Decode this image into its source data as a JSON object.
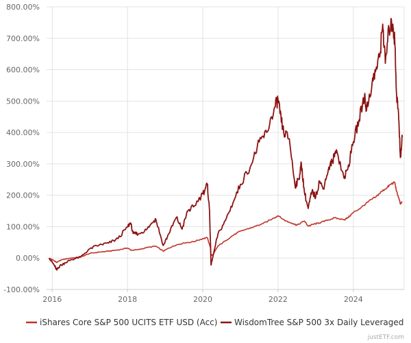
{
  "chart_data": {
    "type": "line",
    "title": "",
    "xlabel": "",
    "ylabel": "",
    "xlim": [
      2015.85,
      2025.35
    ],
    "ylim": [
      -100,
      800
    ],
    "x_ticks": [
      "2016",
      "2018",
      "2020",
      "2022",
      "2024"
    ],
    "y_ticks": [
      "-100.00%",
      "0.00%",
      "100.00%",
      "200.00%",
      "300.00%",
      "400.00%",
      "500.00%",
      "600.00%",
      "700.00%",
      "800.00%"
    ],
    "grid": true,
    "legend_position": "bottom",
    "series": [
      {
        "name": "iShares Core S&P 500 UCITS ETF USD (Acc)",
        "color": "#c0322a",
        "points": [
          [
            2015.92,
            0
          ],
          [
            2016.05,
            -8
          ],
          [
            2016.12,
            -14
          ],
          [
            2016.25,
            -5
          ],
          [
            2016.5,
            0
          ],
          [
            2016.75,
            3
          ],
          [
            2017.0,
            15
          ],
          [
            2017.25,
            19
          ],
          [
            2017.5,
            22
          ],
          [
            2017.75,
            26
          ],
          [
            2018.0,
            32
          ],
          [
            2018.1,
            25
          ],
          [
            2018.3,
            27
          ],
          [
            2018.5,
            33
          ],
          [
            2018.75,
            38
          ],
          [
            2018.95,
            22
          ],
          [
            2019.1,
            32
          ],
          [
            2019.3,
            42
          ],
          [
            2019.5,
            48
          ],
          [
            2019.75,
            52
          ],
          [
            2020.0,
            62
          ],
          [
            2020.12,
            65
          ],
          [
            2020.2,
            35
          ],
          [
            2020.22,
            8
          ],
          [
            2020.28,
            12
          ],
          [
            2020.4,
            38
          ],
          [
            2020.6,
            55
          ],
          [
            2020.8,
            72
          ],
          [
            2021.0,
            86
          ],
          [
            2021.3,
            97
          ],
          [
            2021.6,
            110
          ],
          [
            2021.9,
            128
          ],
          [
            2022.0,
            135
          ],
          [
            2022.2,
            118
          ],
          [
            2022.4,
            110
          ],
          [
            2022.5,
            105
          ],
          [
            2022.7,
            118
          ],
          [
            2022.8,
            102
          ],
          [
            2022.95,
            108
          ],
          [
            2023.1,
            112
          ],
          [
            2023.3,
            120
          ],
          [
            2023.5,
            128
          ],
          [
            2023.75,
            122
          ],
          [
            2023.85,
            128
          ],
          [
            2024.0,
            145
          ],
          [
            2024.2,
            160
          ],
          [
            2024.4,
            180
          ],
          [
            2024.6,
            195
          ],
          [
            2024.75,
            212
          ],
          [
            2024.9,
            225
          ],
          [
            2025.0,
            236
          ],
          [
            2025.1,
            241
          ],
          [
            2025.15,
            212
          ],
          [
            2025.2,
            194
          ],
          [
            2025.25,
            172
          ],
          [
            2025.3,
            178
          ]
        ]
      },
      {
        "name": "WisdomTree S&P 500 3x Daily Leveraged",
        "color": "#8b1212",
        "points": [
          [
            2015.92,
            0
          ],
          [
            2016.05,
            -22
          ],
          [
            2016.12,
            -38
          ],
          [
            2016.2,
            -25
          ],
          [
            2016.35,
            -15
          ],
          [
            2016.5,
            -5
          ],
          [
            2016.75,
            3
          ],
          [
            2017.0,
            30
          ],
          [
            2017.25,
            42
          ],
          [
            2017.5,
            48
          ],
          [
            2017.75,
            62
          ],
          [
            2018.0,
            100
          ],
          [
            2018.08,
            112
          ],
          [
            2018.15,
            78
          ],
          [
            2018.3,
            78
          ],
          [
            2018.5,
            90
          ],
          [
            2018.7,
            118
          ],
          [
            2018.75,
            125
          ],
          [
            2018.95,
            40
          ],
          [
            2019.1,
            78
          ],
          [
            2019.3,
            130
          ],
          [
            2019.45,
            92
          ],
          [
            2019.6,
            150
          ],
          [
            2019.75,
            163
          ],
          [
            2020.0,
            205
          ],
          [
            2020.12,
            235
          ],
          [
            2020.18,
            150
          ],
          [
            2020.22,
            -22
          ],
          [
            2020.28,
            10
          ],
          [
            2020.4,
            75
          ],
          [
            2020.6,
            120
          ],
          [
            2020.8,
            175
          ],
          [
            2021.0,
            235
          ],
          [
            2021.3,
            300
          ],
          [
            2021.5,
            370
          ],
          [
            2021.7,
            400
          ],
          [
            2021.9,
            478
          ],
          [
            2022.0,
            505
          ],
          [
            2022.05,
            460
          ],
          [
            2022.15,
            400
          ],
          [
            2022.3,
            380
          ],
          [
            2022.45,
            230
          ],
          [
            2022.55,
            250
          ],
          [
            2022.62,
            300
          ],
          [
            2022.7,
            210
          ],
          [
            2022.8,
            158
          ],
          [
            2022.9,
            212
          ],
          [
            2023.0,
            195
          ],
          [
            2023.1,
            245
          ],
          [
            2023.2,
            220
          ],
          [
            2023.35,
            290
          ],
          [
            2023.45,
            310
          ],
          [
            2023.55,
            345
          ],
          [
            2023.75,
            255
          ],
          [
            2023.85,
            282
          ],
          [
            2024.0,
            370
          ],
          [
            2024.15,
            440
          ],
          [
            2024.3,
            520
          ],
          [
            2024.35,
            470
          ],
          [
            2024.5,
            560
          ],
          [
            2024.6,
            600
          ],
          [
            2024.7,
            640
          ],
          [
            2024.78,
            745
          ],
          [
            2024.85,
            620
          ],
          [
            2024.95,
            730
          ],
          [
            2025.05,
            745
          ],
          [
            2025.1,
            690
          ],
          [
            2025.15,
            520
          ],
          [
            2025.2,
            460
          ],
          [
            2025.25,
            320
          ],
          [
            2025.3,
            385
          ]
        ]
      }
    ]
  },
  "watermark": "justETF.com"
}
